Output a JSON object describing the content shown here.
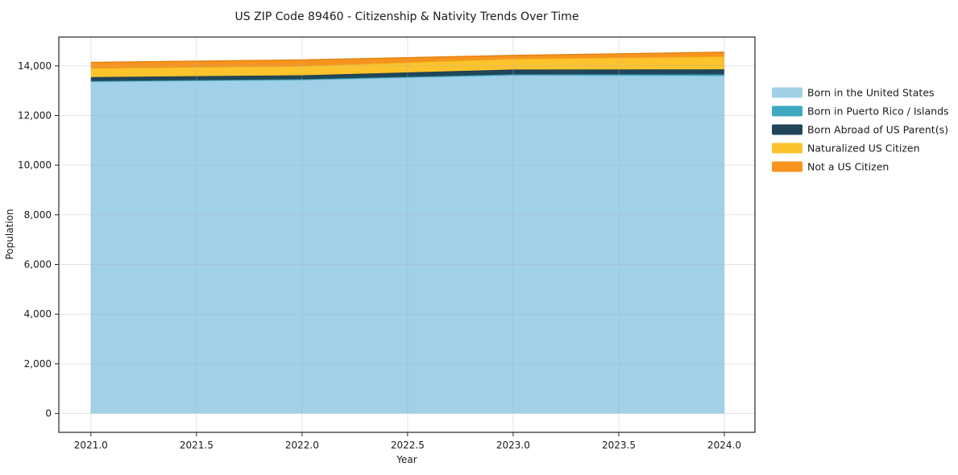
{
  "title": "US ZIP Code 89460 - Citizenship & Nativity Trends Over Time",
  "chart_data": {
    "type": "area",
    "stacked": true,
    "title": "US ZIP Code 89460 - Citizenship & Nativity Trends Over Time",
    "xlabel": "Year",
    "ylabel": "Population",
    "x": [
      2021,
      2022,
      2023,
      2024
    ],
    "series": [
      {
        "name": "Born in the United States",
        "color": "#a0d1e8",
        "edge": "#86bedd",
        "values": [
          13360,
          13430,
          13620,
          13600
        ]
      },
      {
        "name": "Born in Puerto Rico / Islands",
        "color": "#3fa8bf",
        "edge": "#358fa3",
        "values": [
          30,
          30,
          40,
          60
        ]
      },
      {
        "name": "Born Abroad of US Parent(s)",
        "color": "#20465a",
        "edge": "#1a3a4b",
        "values": [
          160,
          160,
          190,
          200
        ]
      },
      {
        "name": "Naturalized US Citizen",
        "color": "#fcc32d",
        "edge": "#eead15",
        "values": [
          360,
          370,
          430,
          520
        ]
      },
      {
        "name": "Not a US Citizen",
        "color": "#f7941e",
        "edge": "#e37f0e",
        "values": [
          230,
          250,
          140,
          170
        ]
      }
    ],
    "x_ticks": [
      2021.0,
      2021.5,
      2022.0,
      2022.5,
      2023.0,
      2023.5,
      2024.0
    ],
    "x_tick_labels": [
      "2021.0",
      "2021.5",
      "2022.0",
      "2022.5",
      "2023.0",
      "2023.5",
      "2024.0"
    ],
    "y_ticks": [
      0,
      2000,
      4000,
      6000,
      8000,
      10000,
      12000,
      14000
    ],
    "y_tick_labels": [
      "0",
      "2,000",
      "4,000",
      "6,000",
      "8,000",
      "10,000",
      "12,000",
      "14,000"
    ],
    "xlim": [
      2020.848,
      2024.145
    ],
    "ylim": [
      -760,
      15160
    ],
    "grid": true,
    "legend_position": "right of plot",
    "colors": {
      "spine": "#262626",
      "grid": "rgba(176,176,176,0.35)",
      "text": "#1a1a1a",
      "background": "#ffffff"
    }
  }
}
